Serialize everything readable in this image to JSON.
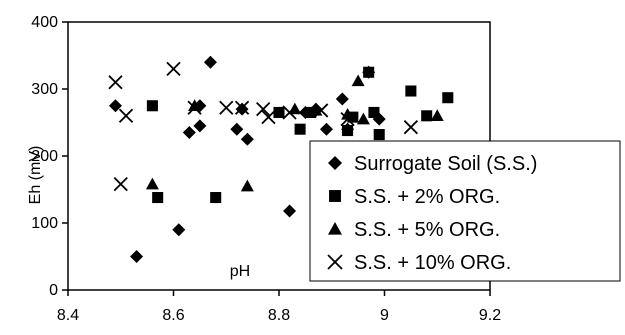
{
  "chart_data": {
    "type": "scatter",
    "title": "",
    "xlabel": "pH",
    "ylabel": "Eh (mV)",
    "xlim": [
      8.4,
      9.2
    ],
    "ylim": [
      0,
      400
    ],
    "x_ticks": [
      "8.4",
      "8.6",
      "8.8",
      "9",
      "9.2"
    ],
    "y_ticks": [
      "0",
      "100",
      "200",
      "300",
      "400"
    ],
    "grid": false,
    "legend_position": "lower-right",
    "series": [
      {
        "name": "Surrogate Soil (S.S.)",
        "marker": "diamond",
        "points": [
          [
            8.49,
            275
          ],
          [
            8.53,
            50
          ],
          [
            8.61,
            90
          ],
          [
            8.63,
            235
          ],
          [
            8.65,
            245
          ],
          [
            8.67,
            340
          ],
          [
            8.65,
            275
          ],
          [
            8.72,
            240
          ],
          [
            8.74,
            225
          ],
          [
            8.73,
            270
          ],
          [
            8.82,
            118
          ],
          [
            8.85,
            265
          ],
          [
            8.87,
            270
          ],
          [
            8.89,
            240
          ],
          [
            8.92,
            285
          ],
          [
            8.93,
            240
          ],
          [
            8.97,
            325
          ],
          [
            8.99,
            255
          ]
        ]
      },
      {
        "name": "S.S. + 2% ORG.",
        "marker": "square",
        "points": [
          [
            8.56,
            275
          ],
          [
            8.57,
            138
          ],
          [
            8.68,
            138
          ],
          [
            8.8,
            265
          ],
          [
            8.84,
            240
          ],
          [
            8.86,
            265
          ],
          [
            8.93,
            238
          ],
          [
            8.94,
            258
          ],
          [
            8.97,
            325
          ],
          [
            8.98,
            265
          ],
          [
            8.99,
            232
          ],
          [
            9.05,
            297
          ],
          [
            9.08,
            260
          ],
          [
            9.12,
            287
          ]
        ]
      },
      {
        "name": "S.S. + 5% ORG.",
        "marker": "triangle",
        "points": [
          [
            8.56,
            158
          ],
          [
            8.64,
            275
          ],
          [
            8.74,
            155
          ],
          [
            8.83,
            270
          ],
          [
            8.87,
            268
          ],
          [
            8.93,
            262
          ],
          [
            8.95,
            312
          ],
          [
            8.96,
            255
          ],
          [
            9.1,
            260
          ]
        ]
      },
      {
        "name": "S.S. + 10% ORG.",
        "marker": "x",
        "points": [
          [
            8.49,
            310
          ],
          [
            8.5,
            158
          ],
          [
            8.51,
            260
          ],
          [
            8.6,
            330
          ],
          [
            8.64,
            272
          ],
          [
            8.7,
            272
          ],
          [
            8.73,
            272
          ],
          [
            8.77,
            270
          ],
          [
            8.78,
            258
          ],
          [
            8.82,
            265
          ],
          [
            8.88,
            268
          ],
          [
            8.93,
            255
          ],
          [
            9.05,
            243
          ]
        ]
      }
    ]
  }
}
